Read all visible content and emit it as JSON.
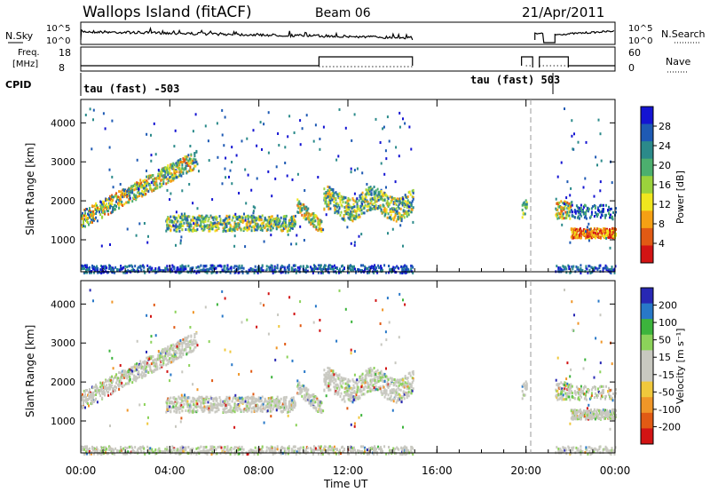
{
  "header": {
    "station": "Wallops Island (fitACF)",
    "beam": "Beam 06",
    "date": "21/Apr/2011"
  },
  "nsky_panel": {
    "label": "N.Sky",
    "yticks": [
      "10^5",
      "10^0"
    ],
    "right_yticks": [
      "10^5",
      "10^0"
    ],
    "right_label": "N.Search"
  },
  "freq_panel": {
    "label_line1": "Freq.",
    "label_line2": "[MHz]",
    "yticks": [
      "18",
      "8"
    ],
    "right_yticks": [
      "60",
      "0"
    ],
    "right_label": "Nave"
  },
  "cpid_panel": {
    "label": "CPID",
    "segments": [
      {
        "text": "tau (fast) -503",
        "start_hour": 0
      },
      {
        "text": "tau (fast) 503",
        "start_hour": 21.3
      }
    ]
  },
  "chart_data": [
    {
      "type": "heatmap",
      "name": "power-panel",
      "ylabel": "Slant Range [km]",
      "xlabel": "",
      "xlim_hours": [
        0,
        24
      ],
      "ylim": [
        180,
        4600
      ],
      "yticks": [
        "1000",
        "2000",
        "3000",
        "4000"
      ],
      "colorbar": {
        "label": "Power [dB]",
        "ticks": [
          "4",
          "8",
          "12",
          "16",
          "20",
          "24",
          "28"
        ],
        "colors": [
          "#1414d2",
          "#1e5ab4",
          "#2b8a8a",
          "#4caf6e",
          "#9bd23c",
          "#f0e61e",
          "#f5a014",
          "#e15a14",
          "#d21414"
        ]
      }
    },
    {
      "type": "heatmap",
      "name": "velocity-panel",
      "ylabel": "Slant Range [km]",
      "xlabel": "Time UT",
      "xlim_hours": [
        0,
        24
      ],
      "ylim": [
        180,
        4600
      ],
      "yticks": [
        "1000",
        "2000",
        "3000",
        "4000"
      ],
      "xticks": [
        "00:00",
        "04:00",
        "08:00",
        "12:00",
        "16:00",
        "20:00",
        "00:00"
      ],
      "colorbar": {
        "label": "Velocity [m s⁻¹]",
        "ticks": [
          "200",
          "100",
          "50",
          "15",
          "-15",
          "-50",
          "-100",
          "-200"
        ],
        "colors": [
          "#2828b4",
          "#2878c8",
          "#3cb43c",
          "#8cd25a",
          "#c8c8c0",
          "#c8c8c0",
          "#f0c83c",
          "#f09628",
          "#e15a14",
          "#d21414"
        ]
      }
    }
  ]
}
